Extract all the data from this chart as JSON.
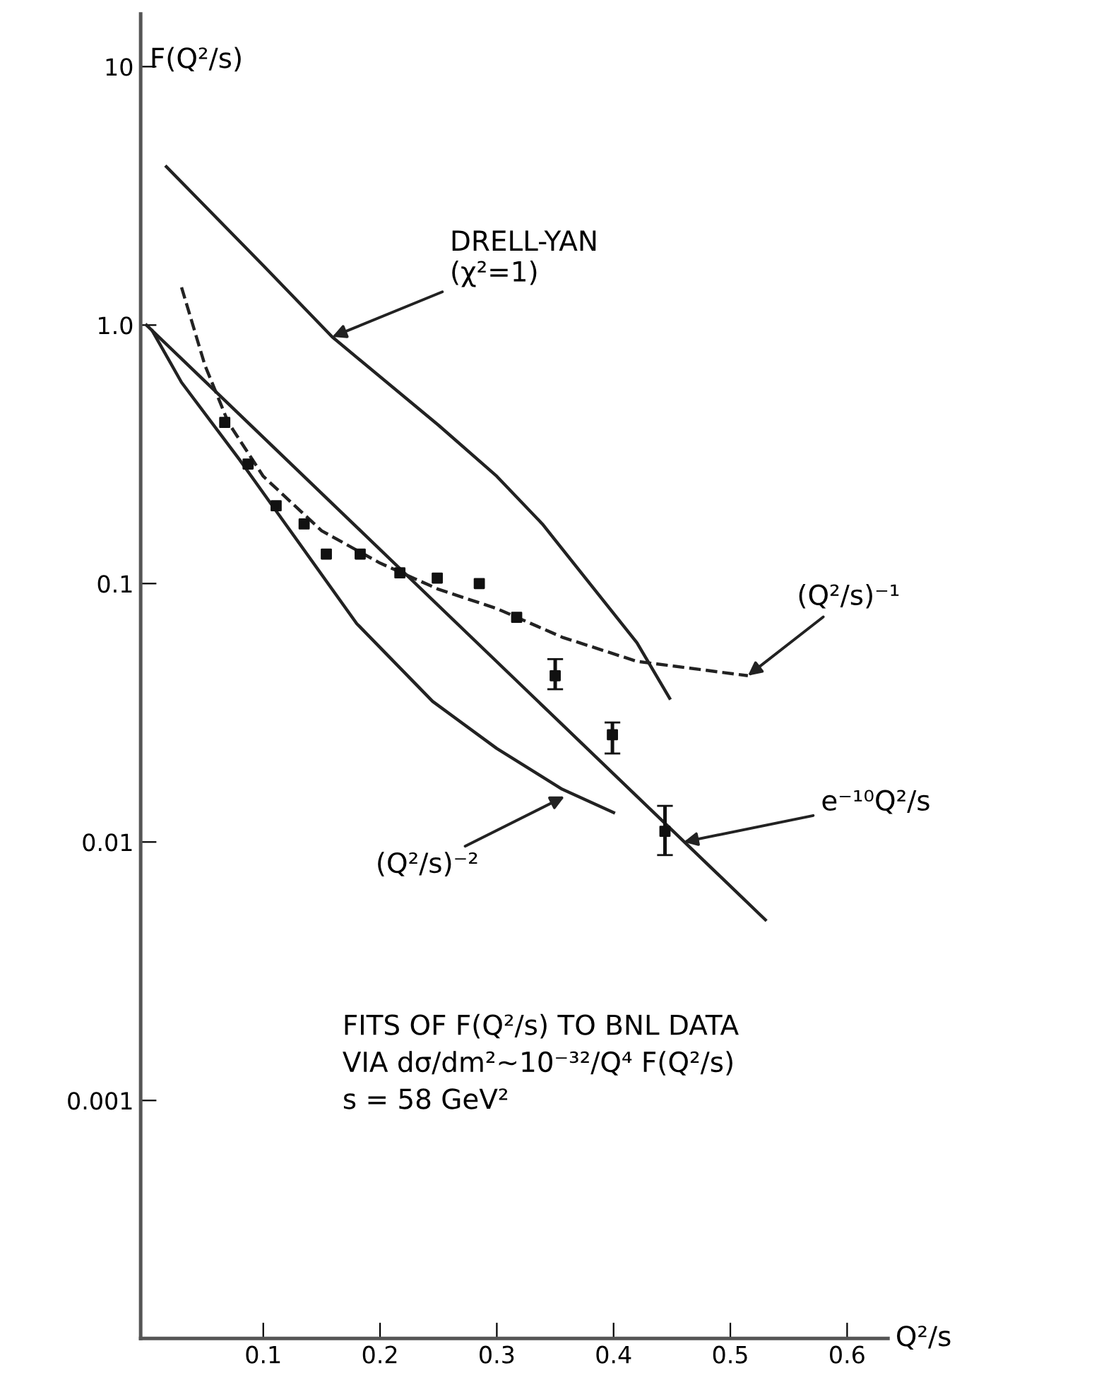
{
  "chart_data": {
    "type": "line",
    "xlabel": "Q²/s",
    "ylabel": "F(Q²/s)",
    "log": "y",
    "xlim": [
      -0.005,
      0.635
    ],
    "ylim": [
      0.00012,
      16
    ],
    "xticks": [
      0.1,
      0.2,
      0.3,
      0.4,
      0.5,
      0.6
    ],
    "yticks": [
      {
        "value": 10,
        "label": "10"
      },
      {
        "value": 1,
        "label": "1.0"
      },
      {
        "value": 0.1,
        "label": "0.1"
      },
      {
        "value": 0.01,
        "label": "0.01"
      },
      {
        "value": 0.001,
        "label": "0.001"
      }
    ],
    "grid": false,
    "series": [
      {
        "color": "#222222",
        "line_style": "solid",
        "marker": "none",
        "x": [
          0.017,
          0.1,
          0.159,
          0.25,
          0.3,
          0.339,
          0.42,
          0.448
        ],
        "values": [
          4.1,
          1.7,
          0.9,
          0.41,
          0.26,
          0.17,
          0.059,
          0.036
        ]
      },
      {
        "color": "#222222",
        "line_style": "solid",
        "marker": "none",
        "x": [
          0.0,
          0.53
        ],
        "values": [
          1.0,
          0.005
        ]
      },
      {
        "color": "#222222",
        "line_style": "solid",
        "marker": "none",
        "x": [
          0.005,
          0.03,
          0.08,
          0.119,
          0.18,
          0.245,
          0.3,
          0.356,
          0.4
        ],
        "values": [
          0.95,
          0.6,
          0.3,
          0.17,
          0.07,
          0.035,
          0.023,
          0.016,
          0.013
        ]
      },
      {
        "color": "#222222",
        "line_style": "dashed",
        "marker": "none",
        "x": [
          0.03,
          0.05,
          0.07,
          0.1,
          0.15,
          0.2,
          0.25,
          0.3,
          0.356,
          0.42,
          0.515
        ],
        "values": [
          1.4,
          0.7,
          0.42,
          0.26,
          0.16,
          0.12,
          0.095,
          0.08,
          0.062,
          0.05,
          0.044
        ]
      },
      {
        "type": "scatter",
        "color": "#111111",
        "marker": "square",
        "x": [
          0.067,
          0.087,
          0.111,
          0.135,
          0.154,
          0.183,
          0.217,
          0.249,
          0.285,
          0.317,
          0.35,
          0.399,
          0.444
        ],
        "values": [
          0.42,
          0.29,
          0.2,
          0.17,
          0.13,
          0.13,
          0.11,
          0.105,
          0.1,
          0.074,
          0.044,
          0.026,
          0.011
        ],
        "errors": [
          null,
          null,
          null,
          null,
          null,
          null,
          null,
          null,
          null,
          null,
          [
            0.039,
            0.051
          ],
          [
            0.022,
            0.029
          ],
          [
            0.0089,
            0.0138
          ]
        ]
      }
    ],
    "annotations": [
      {
        "text": "DRELL-YAN\n(χ²=1)",
        "x": 0.159,
        "y": 0.9
      },
      {
        "text": "(Q²/s)⁻¹",
        "x": 0.515,
        "y": 0.044
      },
      {
        "text": "e⁻¹⁰Q²/s",
        "x": 0.46,
        "y": 0.01
      },
      {
        "text": "(Q²/s)⁻²",
        "x": 0.358,
        "y": 0.015
      },
      "FITS OF F(Q²/s) TO BNL DATA\nVIA dσ/dm²~10⁻³²/Q⁴ F(Q²/s)\ns = 58 GeV²"
    ]
  }
}
